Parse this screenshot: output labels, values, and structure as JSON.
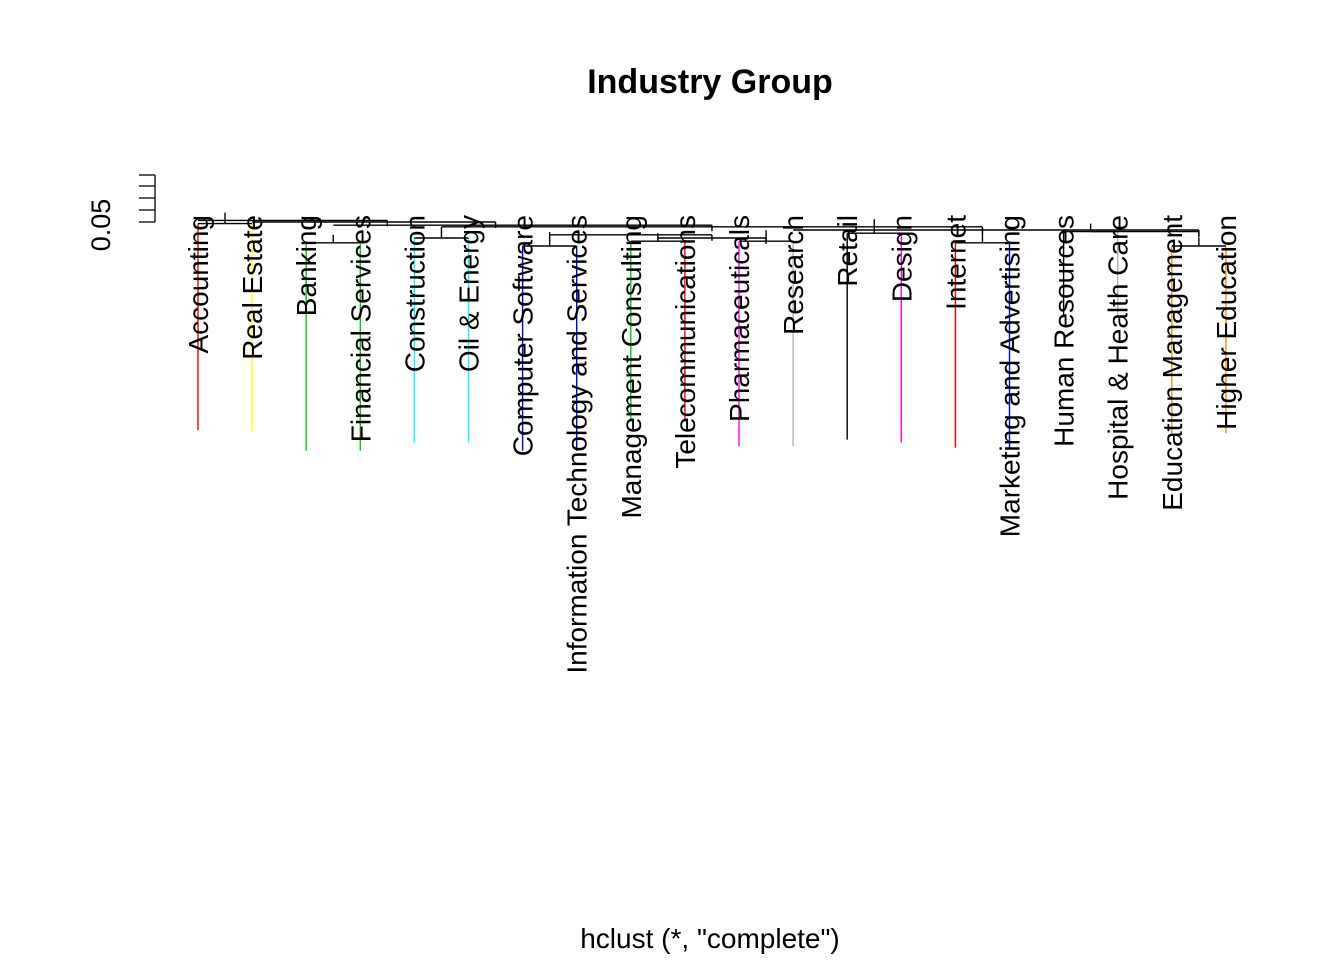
{
  "chart_data": {
    "type": "dendrogram",
    "title": "Industry Group",
    "sub": "hclust (*, \"complete\")",
    "y_axis": {
      "label_tick": 0.05,
      "range": [
        0.03,
        0.16
      ],
      "minor_ticks": [
        0.04,
        0.05,
        0.06,
        0.07,
        0.08
      ]
    },
    "leaves": [
      {
        "label": "Accounting",
        "color": "#ff0000",
        "bottom": 0.01
      },
      {
        "label": "Real Estate",
        "color": "#ffff00",
        "bottom": 0.009
      },
      {
        "label": "Banking",
        "color": "#00cd00",
        "bottom": -0.003
      },
      {
        "label": "Financial Services",
        "color": "#00cd00",
        "bottom": -0.003
      },
      {
        "label": "Construction",
        "color": "#00ffff",
        "bottom": 0.002
      },
      {
        "label": "Oil & Energy",
        "color": "#00ffff",
        "bottom": 0.002
      },
      {
        "label": "Computer Software",
        "color": "#0000ff",
        "bottom": -0.003
      },
      {
        "label": "Information Technology and Services",
        "color": "#0000ff",
        "bottom": -0.003
      },
      {
        "label": "Management Consulting",
        "color": "#00cd00",
        "bottom": 0.017
      },
      {
        "label": "Telecommunications",
        "color": "#ff0000",
        "bottom": 0.017
      },
      {
        "label": "Pharmaceuticals",
        "color": "#ff00ff",
        "bottom": 0.0
      },
      {
        "label": "Research",
        "color": "#b3b3b3",
        "bottom": 0.0
      },
      {
        "label": "Retail",
        "color": "#000000",
        "bottom": 0.004
      },
      {
        "label": "Design",
        "color": "#ff00ff",
        "bottom": 0.002
      },
      {
        "label": "Internet",
        "color": "#ff0000",
        "bottom": -0.001
      },
      {
        "label": "Marketing and Advertising",
        "color": "#0000ff",
        "bottom": -0.001
      },
      {
        "label": "Human Resources",
        "color": "#000000",
        "bottom": 0.081
      },
      {
        "label": "Hospital & Health Care",
        "color": "#b3b3b3",
        "bottom": 0.081
      },
      {
        "label": "Education Management",
        "color": "#ff8c00",
        "bottom": 0.008
      },
      {
        "label": "Higher Education",
        "color": "#ff8c00",
        "bottom": 0.008
      }
    ],
    "merges": [
      {
        "left": 2,
        "right": 3,
        "height": 0.072
      },
      {
        "left": 4,
        "right": 5,
        "height": 0.075
      },
      {
        "left": 6,
        "right": 7,
        "height": 0.07
      },
      {
        "left": 8,
        "right": 9,
        "height": 0.073
      },
      {
        "left": 10,
        "right": 11,
        "height": 0.073
      },
      {
        "left": 14,
        "right": 15,
        "height": 0.072
      },
      {
        "left": 18,
        "right": 19,
        "height": 0.07
      },
      {
        "left": 0,
        "right": 1,
        "height": 0.084
      },
      {
        "left": 12,
        "right": 13,
        "height": 0.078
      },
      {
        "left": 16,
        "right": 17,
        "height": 0.079
      }
    ],
    "top_lines": [
      {
        "x1": 0,
        "x2": 3.5,
        "height": 0.086
      },
      {
        "x1": 1,
        "x2": 5.5,
        "height": 0.085
      },
      {
        "x1": 2.5,
        "x2": 9.5,
        "height": 0.083
      },
      {
        "x1": 4.5,
        "x2": 14.5,
        "height": 0.082
      },
      {
        "x1": 6.5,
        "x2": 9.5,
        "height": 0.077
      },
      {
        "x1": 8.5,
        "x2": 10.5,
        "height": 0.075
      },
      {
        "x1": 11,
        "x2": 18.5,
        "height": 0.08
      },
      {
        "x1": 16.5,
        "x2": 18.5,
        "height": 0.079
      }
    ]
  }
}
